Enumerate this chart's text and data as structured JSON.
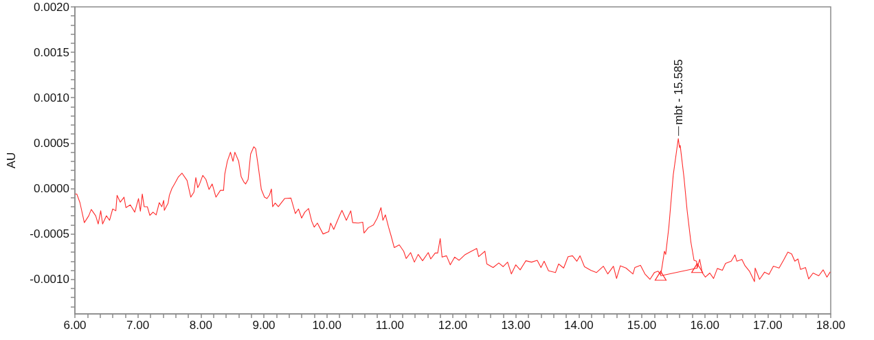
{
  "chart_data": {
    "type": "line",
    "ylabel": "AU",
    "xlim": [
      6,
      18
    ],
    "ylim": [
      -0.00138,
      0.002
    ],
    "xticks": [
      {
        "value": 6,
        "label": "6.00"
      },
      {
        "value": 6.2,
        "label": null
      },
      {
        "value": 6.4,
        "label": null
      },
      {
        "value": 6.6,
        "label": null
      },
      {
        "value": 6.8,
        "label": null
      },
      {
        "value": 7,
        "label": "7.00"
      },
      {
        "value": 7.2,
        "label": null
      },
      {
        "value": 7.4,
        "label": null
      },
      {
        "value": 7.6,
        "label": null
      },
      {
        "value": 7.8,
        "label": null
      },
      {
        "value": 8,
        "label": "8.00"
      },
      {
        "value": 8.2,
        "label": null
      },
      {
        "value": 8.4,
        "label": null
      },
      {
        "value": 8.6,
        "label": null
      },
      {
        "value": 8.8,
        "label": null
      },
      {
        "value": 9,
        "label": "9.00"
      },
      {
        "value": 9.2,
        "label": null
      },
      {
        "value": 9.4,
        "label": null
      },
      {
        "value": 9.6,
        "label": null
      },
      {
        "value": 9.8,
        "label": null
      },
      {
        "value": 10,
        "label": "10.00"
      },
      {
        "value": 10.2,
        "label": null
      },
      {
        "value": 10.4,
        "label": null
      },
      {
        "value": 10.6,
        "label": null
      },
      {
        "value": 10.8,
        "label": null
      },
      {
        "value": 11,
        "label": "11.00"
      },
      {
        "value": 11.2,
        "label": null
      },
      {
        "value": 11.4,
        "label": null
      },
      {
        "value": 11.6,
        "label": null
      },
      {
        "value": 11.8,
        "label": null
      },
      {
        "value": 12,
        "label": "12.00"
      },
      {
        "value": 12.2,
        "label": null
      },
      {
        "value": 12.4,
        "label": null
      },
      {
        "value": 12.6,
        "label": null
      },
      {
        "value": 12.8,
        "label": null
      },
      {
        "value": 13,
        "label": "13.00"
      },
      {
        "value": 13.2,
        "label": null
      },
      {
        "value": 13.4,
        "label": null
      },
      {
        "value": 13.6,
        "label": null
      },
      {
        "value": 13.8,
        "label": null
      },
      {
        "value": 14,
        "label": "14.00"
      },
      {
        "value": 14.2,
        "label": null
      },
      {
        "value": 14.4,
        "label": null
      },
      {
        "value": 14.6,
        "label": null
      },
      {
        "value": 14.8,
        "label": null
      },
      {
        "value": 15,
        "label": "15.00"
      },
      {
        "value": 15.2,
        "label": null
      },
      {
        "value": 15.4,
        "label": null
      },
      {
        "value": 15.6,
        "label": null
      },
      {
        "value": 15.8,
        "label": null
      },
      {
        "value": 16,
        "label": "16.00"
      },
      {
        "value": 16.2,
        "label": null
      },
      {
        "value": 16.4,
        "label": null
      },
      {
        "value": 16.6,
        "label": null
      },
      {
        "value": 16.8,
        "label": null
      },
      {
        "value": 17,
        "label": "17.00"
      },
      {
        "value": 17.2,
        "label": null
      },
      {
        "value": 17.4,
        "label": null
      },
      {
        "value": 17.6,
        "label": null
      },
      {
        "value": 17.8,
        "label": null
      },
      {
        "value": 18,
        "label": "18.00"
      }
    ],
    "yticks": [
      {
        "value": -0.0013,
        "label": null
      },
      {
        "value": -0.0012,
        "label": null
      },
      {
        "value": -0.0011,
        "label": null
      },
      {
        "value": -0.001,
        "label": "-0.0010"
      },
      {
        "value": -0.0009,
        "label": null
      },
      {
        "value": -0.0008,
        "label": null
      },
      {
        "value": -0.0007,
        "label": null
      },
      {
        "value": -0.0006,
        "label": null
      },
      {
        "value": -0.0005,
        "label": "-0.0005"
      },
      {
        "value": -0.0004,
        "label": null
      },
      {
        "value": -0.0003,
        "label": null
      },
      {
        "value": -0.0002,
        "label": null
      },
      {
        "value": -0.0001,
        "label": null
      },
      {
        "value": 0,
        "label": "0.0000"
      },
      {
        "value": 0.0001,
        "label": null
      },
      {
        "value": 0.0002,
        "label": null
      },
      {
        "value": 0.0003,
        "label": null
      },
      {
        "value": 0.0004,
        "label": null
      },
      {
        "value": 0.0005,
        "label": "0.0005"
      },
      {
        "value": 0.0006,
        "label": null
      },
      {
        "value": 0.0007,
        "label": null
      },
      {
        "value": 0.0008,
        "label": null
      },
      {
        "value": 0.0009,
        "label": null
      },
      {
        "value": 0.001,
        "label": "0.0010"
      },
      {
        "value": 0.0011,
        "label": null
      },
      {
        "value": 0.0012,
        "label": null
      },
      {
        "value": 0.0013,
        "label": null
      },
      {
        "value": 0.0014,
        "label": null
      },
      {
        "value": 0.0015,
        "label": "0.0015"
      },
      {
        "value": 0.0016,
        "label": null
      },
      {
        "value": 0.0017,
        "label": null
      },
      {
        "value": 0.0018,
        "label": null
      },
      {
        "value": 0.0019,
        "label": null
      },
      {
        "value": 0.002,
        "label": "0.0020"
      }
    ],
    "grid": false,
    "marker": "none",
    "line_style": "solid",
    "annotations": [
      {
        "text": "mbt - 15.585",
        "x": 15.585,
        "y": 0.00058
      }
    ],
    "series": [
      {
        "color": "#ff2a2a",
        "x": [
          6.01,
          6.03,
          6.08,
          6.15,
          6.22,
          6.26,
          6.33,
          6.37,
          6.41,
          6.44,
          6.5,
          6.55,
          6.6,
          6.65,
          6.67,
          6.72,
          6.78,
          6.81,
          6.88,
          6.95,
          7.01,
          7.04,
          7.07,
          7.1,
          7.15,
          7.19,
          7.24,
          7.29,
          7.34,
          7.38,
          7.41,
          7.42,
          7.48,
          7.5,
          7.54,
          7.59,
          7.64,
          7.7,
          7.78,
          7.84,
          7.89,
          7.92,
          7.95,
          7.98,
          8.03,
          8.08,
          8.13,
          8.18,
          8.24,
          8.31,
          8.36,
          8.38,
          8.42,
          8.47,
          8.51,
          8.54,
          8.6,
          8.64,
          8.68,
          8.71,
          8.75,
          8.79,
          8.84,
          8.87,
          8.91,
          8.96,
          9.01,
          9.05,
          9.09,
          9.12,
          9.14,
          9.18,
          9.23,
          9.33,
          9.43,
          9.5,
          9.55,
          9.6,
          9.65,
          9.71,
          9.76,
          9.8,
          9.85,
          9.94,
          10.03,
          10.06,
          10.11,
          10.2,
          10.24,
          10.31,
          10.38,
          10.41,
          10.5,
          10.57,
          10.59,
          10.66,
          10.74,
          10.8,
          10.86,
          10.89,
          10.93,
          10.98,
          11.02,
          11.07,
          11.15,
          11.22,
          11.26,
          11.33,
          11.39,
          11.45,
          11.52,
          11.61,
          11.65,
          11.72,
          11.76,
          11.8,
          11.83,
          11.9,
          11.96,
          12.03,
          12.1,
          12.19,
          12.28,
          12.38,
          12.41,
          12.51,
          12.54,
          12.64,
          12.73,
          12.8,
          12.87,
          12.93,
          13,
          13.07,
          13.16,
          13.25,
          13.34,
          13.4,
          13.45,
          13.52,
          13.63,
          13.68,
          13.76,
          13.83,
          13.9,
          13.97,
          14.02,
          14.09,
          14.19,
          14.28,
          14.39,
          14.46,
          14.55,
          14.6,
          14.66,
          14.75,
          14.86,
          14.89,
          14.98,
          15.05,
          15.13,
          15.2,
          15.26,
          15.3,
          15.32,
          15.36,
          15.38,
          15.43,
          15.5,
          15.54,
          15.58,
          15.6,
          15.61,
          15.67,
          15.72,
          15.78,
          15.83,
          15.87,
          15.88,
          15.92,
          15.96,
          16.01,
          16.08,
          16.14,
          16.2,
          16.28,
          16.33,
          16.42,
          16.48,
          16.51,
          16.59,
          16.64,
          16.71,
          16.79,
          16.8,
          16.87,
          16.95,
          17.02,
          17.09,
          17.18,
          17.25,
          17.32,
          17.38,
          17.43,
          17.48,
          17.52,
          17.6,
          17.65,
          17.72,
          17.81,
          17.88,
          17.94,
          17.99
        ],
        "values": [
          -6e-05,
          -6e-05,
          -0.000155,
          -0.000375,
          -0.0003,
          -0.00023,
          -0.0003,
          -0.00039,
          -0.000245,
          -0.00039,
          -0.0003,
          -0.00035,
          -0.000225,
          -0.000245,
          -7.5e-05,
          -0.00015,
          -9.5e-05,
          -0.00021,
          -0.00018,
          -0.00026,
          -0.00011,
          -0.00025,
          -6e-05,
          -0.0002,
          -0.0002,
          -0.000295,
          -0.00026,
          -0.00029,
          -0.000155,
          -0.0002,
          -0.00013,
          -0.00024,
          -0.00016,
          -7.5e-05,
          0,
          6e-05,
          0.000125,
          0.00017,
          9e-05,
          -9.5e-05,
          -4e-05,
          0.00012,
          1e-05,
          5e-05,
          0.000145,
          0.0001,
          -1e-05,
          5e-05,
          -9.5e-05,
          -2e-05,
          -2e-05,
          0.00016,
          0.0003,
          0.0004,
          0.0003,
          0.0004,
          0.0003,
          0.00013,
          7.5e-05,
          5e-05,
          0.0001,
          0.00038,
          0.00046,
          0.00044,
          0.00025,
          -1e-05,
          -9.5e-05,
          -0.00011,
          -7e-05,
          -5e-06,
          -0.0002,
          -0.00016,
          -0.0002,
          -0.00011,
          -0.000105,
          -0.000275,
          -0.000225,
          -0.000325,
          -0.00026,
          -0.00022,
          -0.00036,
          -0.000425,
          -0.00038,
          -0.0005,
          -0.000475,
          -0.00038,
          -0.00045,
          -0.0003,
          -0.00024,
          -0.00035,
          -0.000245,
          -0.000375,
          -0.00038,
          -0.00037,
          -0.00049,
          -0.00043,
          -0.0004,
          -0.000325,
          -0.00021,
          -0.00035,
          -0.00029,
          -0.000425,
          -0.00052,
          -0.00065,
          -0.00062,
          -0.00069,
          -0.00077,
          -0.000705,
          -0.00081,
          -0.000725,
          -0.000795,
          -0.000705,
          -0.000775,
          -0.00071,
          -0.00071,
          -0.00055,
          -0.000755,
          -0.00074,
          -0.00084,
          -0.000755,
          -0.00079,
          -0.00073,
          -0.000695,
          -0.00066,
          -0.00075,
          -0.00069,
          -0.00083,
          -0.00087,
          -0.00082,
          -0.00086,
          -0.00081,
          -0.00094,
          -0.00084,
          -0.000895,
          -0.000795,
          -0.00081,
          -0.00079,
          -0.00087,
          -0.0008,
          -0.000905,
          -0.000925,
          -0.00083,
          -0.000875,
          -0.00075,
          -0.00074,
          -0.0008,
          -0.00074,
          -0.00086,
          -0.0009,
          -0.000925,
          -0.000855,
          -0.00094,
          -0.000855,
          -0.00099,
          -0.00085,
          -0.000875,
          -0.00094,
          -0.00087,
          -0.000845,
          -0.00094,
          -0.001,
          -0.000925,
          -0.00091,
          -0.00095,
          -0.00087,
          -0.00069,
          -0.000725,
          -0.000425,
          0.00015,
          0.00035,
          0.00055,
          0.00045,
          0.000475,
          0.000125,
          -0.00024,
          -0.00059,
          -0.00079,
          -0.0008,
          -0.000875,
          -0.00078,
          -0.000925,
          -0.000975,
          -0.00093,
          -0.00099,
          -0.00088,
          -0.0009,
          -0.000825,
          -0.0008,
          -0.00073,
          -0.0008,
          -0.00078,
          -0.00085,
          -0.00091,
          -0.001025,
          -0.000875,
          -0.001,
          -0.00092,
          -0.000945,
          -0.000855,
          -0.000875,
          -0.00079,
          -0.0007,
          -0.00072,
          -0.0008,
          -0.000775,
          -0.00089,
          -0.00087,
          -0.000995,
          -0.00093,
          -0.00096,
          -0.000895,
          -0.000975,
          -0.00092
        ]
      },
      {
        "color": "#ff2a2a",
        "marker": "triangle",
        "x": [
          15.3,
          15.88
        ],
        "values": [
          -0.00096,
          -0.000875
        ]
      }
    ]
  }
}
